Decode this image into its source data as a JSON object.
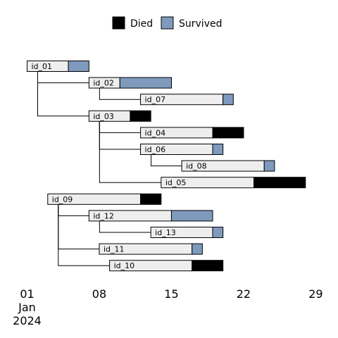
{
  "chart_data": {
    "type": "bar",
    "subtype": "transmission-tree-timeline",
    "date_origin": "2024-01-01",
    "x_ticks": [
      {
        "date": "2024-01-01",
        "lines": [
          "01",
          "Jan",
          "2024"
        ]
      },
      {
        "date": "2024-01-08",
        "lines": [
          "08"
        ]
      },
      {
        "date": "2024-01-15",
        "lines": [
          "15"
        ]
      },
      {
        "date": "2024-01-22",
        "lines": [
          "22"
        ]
      },
      {
        "date": "2024-01-29",
        "lines": [
          "29"
        ]
      }
    ],
    "xlim": [
      "2024-01-01",
      "2024-01-29"
    ],
    "legend": {
      "position": "top",
      "items": [
        {
          "label": "Died",
          "color": "#000000"
        },
        {
          "label": "Survived",
          "color": "#7f9abd"
        }
      ]
    },
    "colors": {
      "infectious": "#eeeeee",
      "Died": "#000000",
      "Survived": "#7f9abd"
    },
    "cases": [
      {
        "id": "id_01",
        "infector": null,
        "start": "2024-01-01",
        "onset": "2024-01-05",
        "end": "2024-01-07",
        "outcome": "Survived"
      },
      {
        "id": "id_02",
        "infector": "id_01",
        "start": "2024-01-07",
        "onset": "2024-01-10",
        "end": "2024-01-15",
        "outcome": "Survived"
      },
      {
        "id": "id_07",
        "infector": "id_02",
        "start": "2024-01-12",
        "onset": "2024-01-20",
        "end": "2024-01-21",
        "outcome": "Survived"
      },
      {
        "id": "id_03",
        "infector": "id_01",
        "start": "2024-01-07",
        "onset": "2024-01-11",
        "end": "2024-01-13",
        "outcome": "Died"
      },
      {
        "id": "id_04",
        "infector": "id_03",
        "start": "2024-01-12",
        "onset": "2024-01-19",
        "end": "2024-01-22",
        "outcome": "Died"
      },
      {
        "id": "id_06",
        "infector": "id_03",
        "start": "2024-01-12",
        "onset": "2024-01-19",
        "end": "2024-01-20",
        "outcome": "Survived"
      },
      {
        "id": "id_08",
        "infector": "id_06",
        "start": "2024-01-16",
        "onset": "2024-01-24",
        "end": "2024-01-25",
        "outcome": "Survived"
      },
      {
        "id": "id_05",
        "infector": "id_03",
        "start": "2024-01-14",
        "onset": "2024-01-23",
        "end": "2024-01-28",
        "outcome": "Died"
      },
      {
        "id": "id_09",
        "infector": null,
        "start": "2024-01-03",
        "onset": "2024-01-12",
        "end": "2024-01-14",
        "outcome": "Died"
      },
      {
        "id": "id_12",
        "infector": "id_09",
        "start": "2024-01-07",
        "onset": "2024-01-15",
        "end": "2024-01-19",
        "outcome": "Survived"
      },
      {
        "id": "id_13",
        "infector": "id_12",
        "start": "2024-01-13",
        "onset": "2024-01-19",
        "end": "2024-01-20",
        "outcome": "Survived"
      },
      {
        "id": "id_11",
        "infector": "id_09",
        "start": "2024-01-08",
        "onset": "2024-01-17",
        "end": "2024-01-18",
        "outcome": "Survived"
      },
      {
        "id": "id_10",
        "infector": "id_09",
        "start": "2024-01-09",
        "onset": "2024-01-17",
        "end": "2024-01-20",
        "outcome": "Died"
      }
    ]
  }
}
